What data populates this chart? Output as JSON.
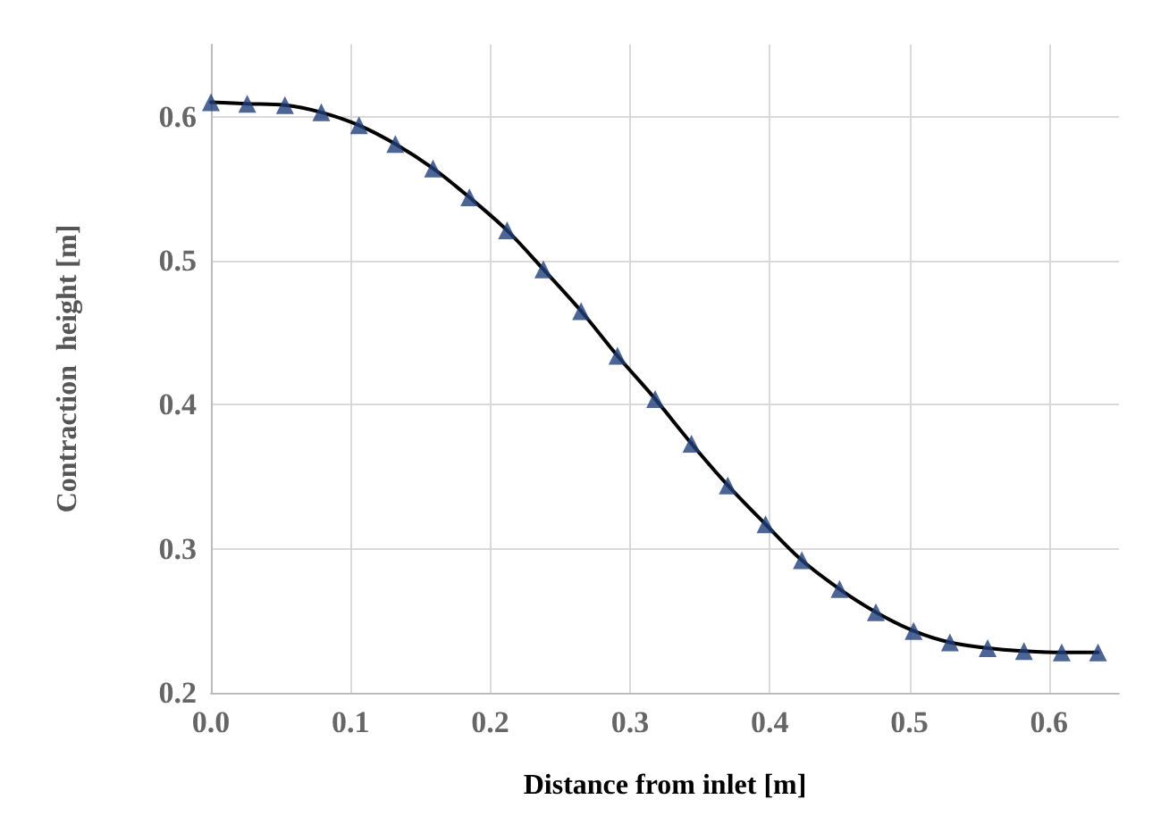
{
  "chart_data": {
    "type": "line",
    "xlabel": "Distance from inlet [m]",
    "ylabel": "Contraction  height [m]",
    "x": [
      0,
      0.026,
      0.053,
      0.079,
      0.106,
      0.132,
      0.159,
      0.185,
      0.212,
      0.238,
      0.265,
      0.291,
      0.318,
      0.344,
      0.37,
      0.397,
      0.423,
      0.45,
      0.476,
      0.503,
      0.529,
      0.556,
      0.582,
      0.609,
      0.635
    ],
    "series": [
      {
        "color": "#000000",
        "marker": "none",
        "values": [
          0.61,
          0.609,
          0.608,
          0.603,
          0.594,
          0.581,
          0.564,
          0.544,
          0.521,
          0.494,
          0.465,
          0.434,
          0.404,
          0.373,
          0.344,
          0.317,
          0.292,
          0.272,
          0.256,
          0.243,
          0.235,
          0.231,
          0.229,
          0.228,
          0.228
        ]
      },
      {
        "type": "scatter",
        "color": "#1f3f7a",
        "marker": "triangle",
        "values": [
          0.61,
          0.609,
          0.608,
          0.603,
          0.594,
          0.581,
          0.564,
          0.544,
          0.521,
          0.494,
          0.465,
          0.434,
          0.404,
          0.373,
          0.344,
          0.317,
          0.292,
          0.272,
          0.256,
          0.243,
          0.235,
          0.231,
          0.229,
          0.228,
          0.228
        ]
      }
    ],
    "xlim": [
      0,
      0.65
    ],
    "xticks": [
      {
        "value": 0,
        "label": "0.0"
      },
      0.1,
      0.2,
      0.3,
      0.4,
      0.5,
      0.6
    ],
    "ylim": [
      0.2,
      0.65
    ],
    "yticks": [
      0.2,
      0.3,
      0.4,
      0.5,
      0.6
    ],
    "grid": true
  }
}
